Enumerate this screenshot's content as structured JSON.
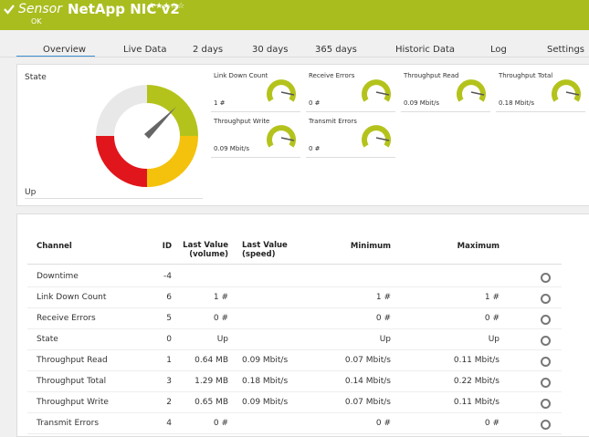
{
  "header": {
    "sensor_label": "Sensor",
    "title": "NetApp NIC v2",
    "priority": "★★★☆☆",
    "status": "OK"
  },
  "tabs": [
    "Overview",
    "Live Data",
    "2 days",
    "30 days",
    "365 days",
    "Historic Data",
    "Log",
    "Settings"
  ],
  "state_panel": {
    "label": "State",
    "value": "Up"
  },
  "gauges": [
    {
      "label": "Link Down Count",
      "value": "1 #"
    },
    {
      "label": "Receive Errors",
      "value": "0 #"
    },
    {
      "label": "Throughput Read",
      "value": "0.09 Mbit/s"
    },
    {
      "label": "Throughput Total",
      "value": "0.18 Mbit/s"
    },
    {
      "label": "Throughput Write",
      "value": "0.09 Mbit/s"
    },
    {
      "label": "Transmit Errors",
      "value": "0 #"
    }
  ],
  "table": {
    "headers": [
      "Channel",
      "ID",
      "Last Value (volume)",
      "Last Value (speed)",
      "Minimum",
      "Maximum"
    ],
    "rows": [
      [
        "Downtime",
        "-4",
        "",
        "",
        "",
        ""
      ],
      [
        "Link Down Count",
        "6",
        "1 #",
        "",
        "1 #",
        "1 #"
      ],
      [
        "Receive Errors",
        "5",
        "0 #",
        "",
        "0 #",
        "0 #"
      ],
      [
        "State",
        "0",
        "Up",
        "",
        "Up",
        "Up"
      ],
      [
        "Throughput Read",
        "1",
        "0.64 MB",
        "0.09 Mbit/s",
        "0.07 Mbit/s",
        "0.11 Mbit/s"
      ],
      [
        "Throughput Total",
        "3",
        "1.29 MB",
        "0.18 Mbit/s",
        "0.14 Mbit/s",
        "0.22 Mbit/s"
      ],
      [
        "Throughput Write",
        "2",
        "0.65 MB",
        "0.09 Mbit/s",
        "0.07 Mbit/s",
        "0.11 Mbit/s"
      ],
      [
        "Transmit Errors",
        "4",
        "0 #",
        "",
        "0 #",
        "0 #"
      ]
    ]
  }
}
